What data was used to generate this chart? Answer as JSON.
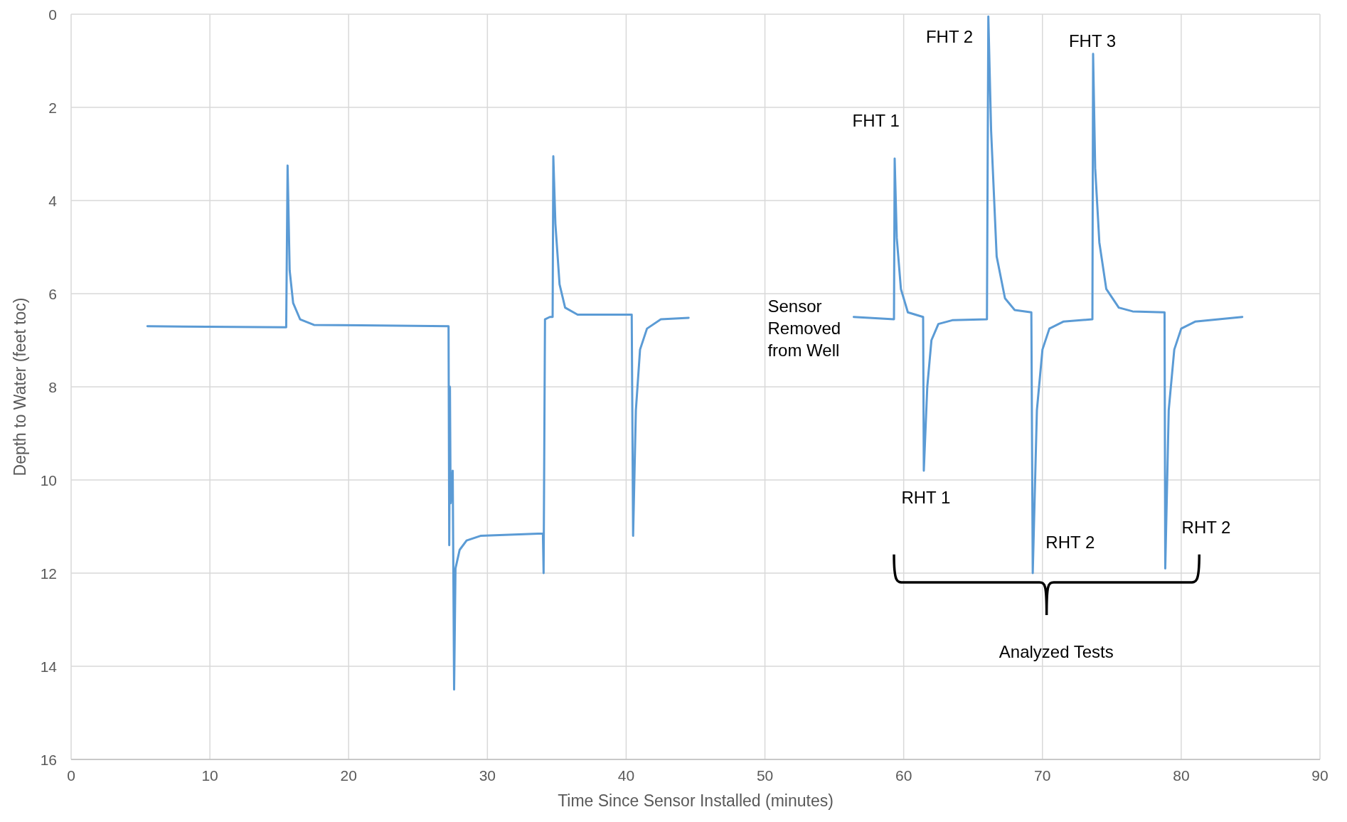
{
  "chart_data": {
    "type": "line",
    "xlabel": "Time Since Sensor Installed (minutes)",
    "ylabel": "Depth to Water (feet toc)",
    "xlim": [
      0,
      90
    ],
    "xticks": [
      0,
      10,
      20,
      30,
      40,
      50,
      60,
      70,
      80,
      90
    ],
    "ylim": [
      16,
      0
    ],
    "yticks": [
      0,
      2,
      4,
      6,
      8,
      10,
      12,
      14,
      16
    ],
    "grid": true,
    "marker": "none",
    "line_style": "solid",
    "series": [
      {
        "color": "#5b9bd5",
        "x": [
          5.5,
          15.5,
          15.6,
          15.75,
          16.0,
          16.5,
          17.5,
          27.2,
          27.25,
          27.3,
          27.35,
          27.5,
          27.6,
          27.7,
          28.0,
          28.5,
          29.5,
          34.0,
          34.05,
          34.15,
          34.5,
          34.7,
          34.75,
          34.9,
          35.2,
          35.6,
          36.5,
          40.4,
          40.5,
          40.7,
          41.0,
          41.5,
          42.5,
          44.5,
          50,
          56.4,
          59.3,
          59.35,
          59.5,
          59.8,
          60.3,
          61.4,
          61.45,
          61.7,
          62.0,
          62.5,
          63.5,
          66.0,
          66.1,
          66.3,
          66.7,
          67.3,
          68.0,
          69.2,
          69.3,
          69.6,
          70.0,
          70.5,
          71.5,
          73.6,
          73.65,
          73.8,
          74.1,
          74.6,
          75.5,
          76.5,
          78.8,
          78.85,
          79.1,
          79.5,
          80.0,
          81.0,
          84.4
        ],
        "values": [
          6.7,
          6.72,
          3.25,
          5.5,
          6.2,
          6.55,
          6.67,
          6.7,
          11.4,
          8.0,
          10.5,
          9.8,
          14.5,
          11.9,
          11.5,
          11.3,
          11.2,
          11.15,
          12.0,
          6.55,
          6.5,
          6.5,
          3.05,
          4.5,
          5.8,
          6.3,
          6.45,
          6.45,
          11.2,
          8.5,
          7.2,
          6.75,
          6.55,
          6.52,
          null,
          6.5,
          6.55,
          3.1,
          4.8,
          5.9,
          6.4,
          6.5,
          9.8,
          8.0,
          7.0,
          6.65,
          6.57,
          6.55,
          0.05,
          2.5,
          5.2,
          6.1,
          6.35,
          6.4,
          12.0,
          8.5,
          7.2,
          6.75,
          6.6,
          6.55,
          0.85,
          3.3,
          4.9,
          5.9,
          6.3,
          6.38,
          6.4,
          11.9,
          8.5,
          7.2,
          6.75,
          6.6,
          6.5
        ]
      }
    ],
    "annotations": [
      "FHT 1",
      "FHT 2",
      "FHT 3",
      "RHT 1",
      "RHT 2",
      "RHT 2",
      "Sensor\nRemoved\nfrom Well",
      "Analyzed Tests"
    ]
  }
}
